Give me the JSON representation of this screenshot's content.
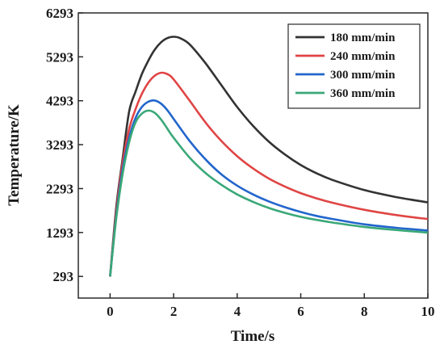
{
  "chart_data": {
    "type": "line",
    "xlabel": "Time/s",
    "ylabel": "Temperature/K",
    "xlim": [
      -1,
      10
    ],
    "ylim": [
      -200,
      6293
    ],
    "xticks": [
      0,
      2,
      4,
      6,
      8,
      10
    ],
    "yticks": [
      293,
      1293,
      2293,
      3293,
      4293,
      5293,
      6293
    ],
    "legend_position": "top-right",
    "grid": false,
    "series": [
      {
        "name": "180 mm/min",
        "color": "#333333",
        "x": [
          0,
          0.2,
          0.4,
          0.6,
          0.8,
          1.0,
          1.2,
          1.4,
          1.6,
          1.8,
          2.0,
          2.2,
          2.5,
          3.0,
          3.5,
          4.0,
          4.5,
          5.0,
          5.5,
          6.0,
          6.5,
          7.0,
          8.0,
          9.0,
          10.0
        ],
        "y": [
          293,
          1900,
          3000,
          4050,
          4500,
          4900,
          5200,
          5450,
          5620,
          5720,
          5750,
          5720,
          5580,
          5150,
          4650,
          4150,
          3720,
          3360,
          3070,
          2830,
          2640,
          2490,
          2260,
          2100,
          1980
        ]
      },
      {
        "name": "240 mm/min",
        "color": "#e04545",
        "x": [
          0,
          0.2,
          0.4,
          0.6,
          0.8,
          1.0,
          1.2,
          1.4,
          1.6,
          1.8,
          2.0,
          2.5,
          3.0,
          3.5,
          4.0,
          4.5,
          5.0,
          5.5,
          6.0,
          6.5,
          7.0,
          8.0,
          9.0,
          10.0
        ],
        "y": [
          293,
          1800,
          2900,
          3650,
          4100,
          4450,
          4700,
          4860,
          4930,
          4900,
          4780,
          4300,
          3800,
          3380,
          3030,
          2750,
          2520,
          2340,
          2190,
          2070,
          1970,
          1810,
          1690,
          1600
        ]
      },
      {
        "name": "300 mm/min",
        "color": "#2266cc",
        "x": [
          0,
          0.2,
          0.4,
          0.6,
          0.8,
          1.0,
          1.2,
          1.4,
          1.6,
          1.8,
          2.0,
          2.5,
          3.0,
          3.5,
          4.0,
          4.5,
          5.0,
          5.5,
          6.0,
          6.5,
          7.0,
          8.0,
          9.0,
          10.0
        ],
        "y": [
          293,
          1700,
          2750,
          3450,
          3900,
          4150,
          4270,
          4300,
          4230,
          4080,
          3880,
          3380,
          2960,
          2620,
          2360,
          2160,
          2000,
          1870,
          1760,
          1670,
          1600,
          1480,
          1400,
          1340
        ]
      },
      {
        "name": "360 mm/min",
        "color": "#3aa878",
        "x": [
          0,
          0.2,
          0.4,
          0.6,
          0.8,
          1.0,
          1.2,
          1.4,
          1.6,
          1.8,
          2.0,
          2.5,
          3.0,
          3.5,
          4.0,
          4.5,
          5.0,
          5.5,
          6.0,
          6.5,
          7.0,
          8.0,
          9.0,
          10.0
        ],
        "y": [
          293,
          1650,
          2650,
          3350,
          3800,
          4000,
          4070,
          4020,
          3870,
          3660,
          3450,
          3000,
          2650,
          2380,
          2160,
          1990,
          1850,
          1740,
          1650,
          1580,
          1520,
          1420,
          1350,
          1290
        ]
      }
    ]
  }
}
